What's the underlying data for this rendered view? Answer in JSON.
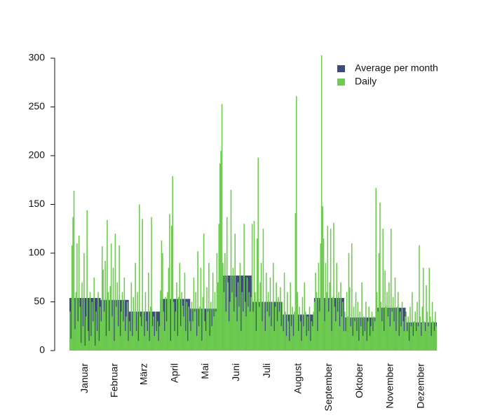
{
  "chart_data": {
    "type": "bar",
    "categories": [
      "Januar",
      "Februar",
      "März",
      "April",
      "Mai",
      "Juni",
      "Juli",
      "August",
      "September",
      "Oktober",
      "November",
      "Dezember"
    ],
    "series": [
      {
        "name": "Average per month",
        "color": "#3f4a7f",
        "values": [
          54,
          52,
          40,
          53,
          43,
          77,
          50,
          37,
          54,
          34,
          44,
          29
        ]
      },
      {
        "name": "Daily",
        "color": "#6dcc4f",
        "values": [
          [
            40,
            12,
            108,
            137,
            164,
            22,
            60,
            110,
            30,
            118,
            45,
            8,
            70,
            25,
            100,
            5,
            35,
            144,
            20,
            10,
            60,
            15,
            50,
            30,
            75,
            5,
            40,
            20,
            60,
            10,
            45
          ],
          [
            30,
            107,
            83,
            40,
            92,
            15,
            134,
            60,
            20,
            66,
            110,
            35,
            85,
            10,
            120,
            45,
            70,
            25,
            108,
            15,
            40,
            60,
            30,
            75,
            20,
            35,
            50,
            10
          ],
          [
            30,
            20,
            70,
            15,
            55,
            40,
            90,
            20,
            60,
            10,
            150,
            35,
            25,
            135,
            40,
            15,
            60,
            30,
            20,
            80,
            10,
            45,
            137,
            25,
            35,
            15,
            40,
            20,
            30,
            10,
            25
          ],
          [
            62,
            113,
            100,
            40,
            20,
            55,
            30,
            60,
            85,
            140,
            10,
            128,
            179,
            50,
            20,
            40,
            70,
            15,
            55,
            90,
            25,
            60,
            46,
            35,
            80,
            20,
            50,
            10,
            45,
            30
          ],
          [
            20,
            50,
            30,
            75,
            40,
            60,
            15,
            102,
            25,
            45,
            85,
            10,
            55,
            120,
            30,
            20,
            65,
            40,
            90,
            15,
            50,
            25,
            80,
            35,
            60,
            40,
            100,
            70,
            130,
            192,
            205
          ],
          [
            253,
            90,
            60,
            100,
            40,
            137,
            70,
            30,
            50,
            165,
            60,
            85,
            40,
            120,
            55,
            30,
            70,
            45,
            90,
            20,
            60,
            40,
            130,
            50,
            35,
            75,
            45,
            60,
            40,
            55
          ],
          [
            130,
            40,
            133,
            60,
            20,
            115,
            198,
            45,
            70,
            90,
            30,
            125,
            50,
            20,
            80,
            40,
            60,
            35,
            75,
            25,
            50,
            90,
            20,
            45,
            70,
            30,
            55,
            40,
            65,
            25,
            50
          ],
          [
            20,
            80,
            40,
            15,
            60,
            30,
            10,
            70,
            25,
            45,
            15,
            40,
            141,
            261,
            60,
            20,
            45,
            30,
            10,
            55,
            25,
            70,
            40,
            15,
            35,
            20,
            45,
            10,
            30,
            25,
            40
          ],
          [
            50,
            80,
            60,
            20,
            90,
            40,
            110,
            303,
            148,
            115,
            30,
            90,
            60,
            128,
            40,
            70,
            125,
            20,
            55,
            131,
            45,
            30,
            90,
            40,
            60,
            25,
            70,
            35,
            50,
            20
          ],
          [
            40,
            20,
            60,
            35,
            100,
            65,
            25,
            110,
            15,
            45,
            30,
            60,
            20,
            50,
            10,
            40,
            25,
            70,
            15,
            35,
            20,
            50,
            10,
            30,
            45,
            15,
            25,
            40,
            20,
            35,
            30
          ],
          [
            167,
            60,
            40,
            100,
            152,
            50,
            30,
            125,
            20,
            82,
            45,
            60,
            35,
            70,
            25,
            125,
            40,
            55,
            30,
            75,
            20,
            45,
            60,
            15,
            40,
            25,
            50,
            30,
            20,
            35
          ],
          [
            40,
            20,
            35,
            10,
            45,
            25,
            60,
            15,
            30,
            40,
            20,
            50,
            25,
            108,
            35,
            15,
            45,
            85,
            30,
            20,
            67,
            40,
            25,
            85,
            35,
            15,
            50,
            30,
            20,
            40,
            25
          ]
        ]
      }
    ],
    "ylim": [
      0,
      300
    ],
    "yticks": [
      0,
      50,
      100,
      150,
      200,
      250,
      300
    ],
    "legend": "upper right"
  }
}
